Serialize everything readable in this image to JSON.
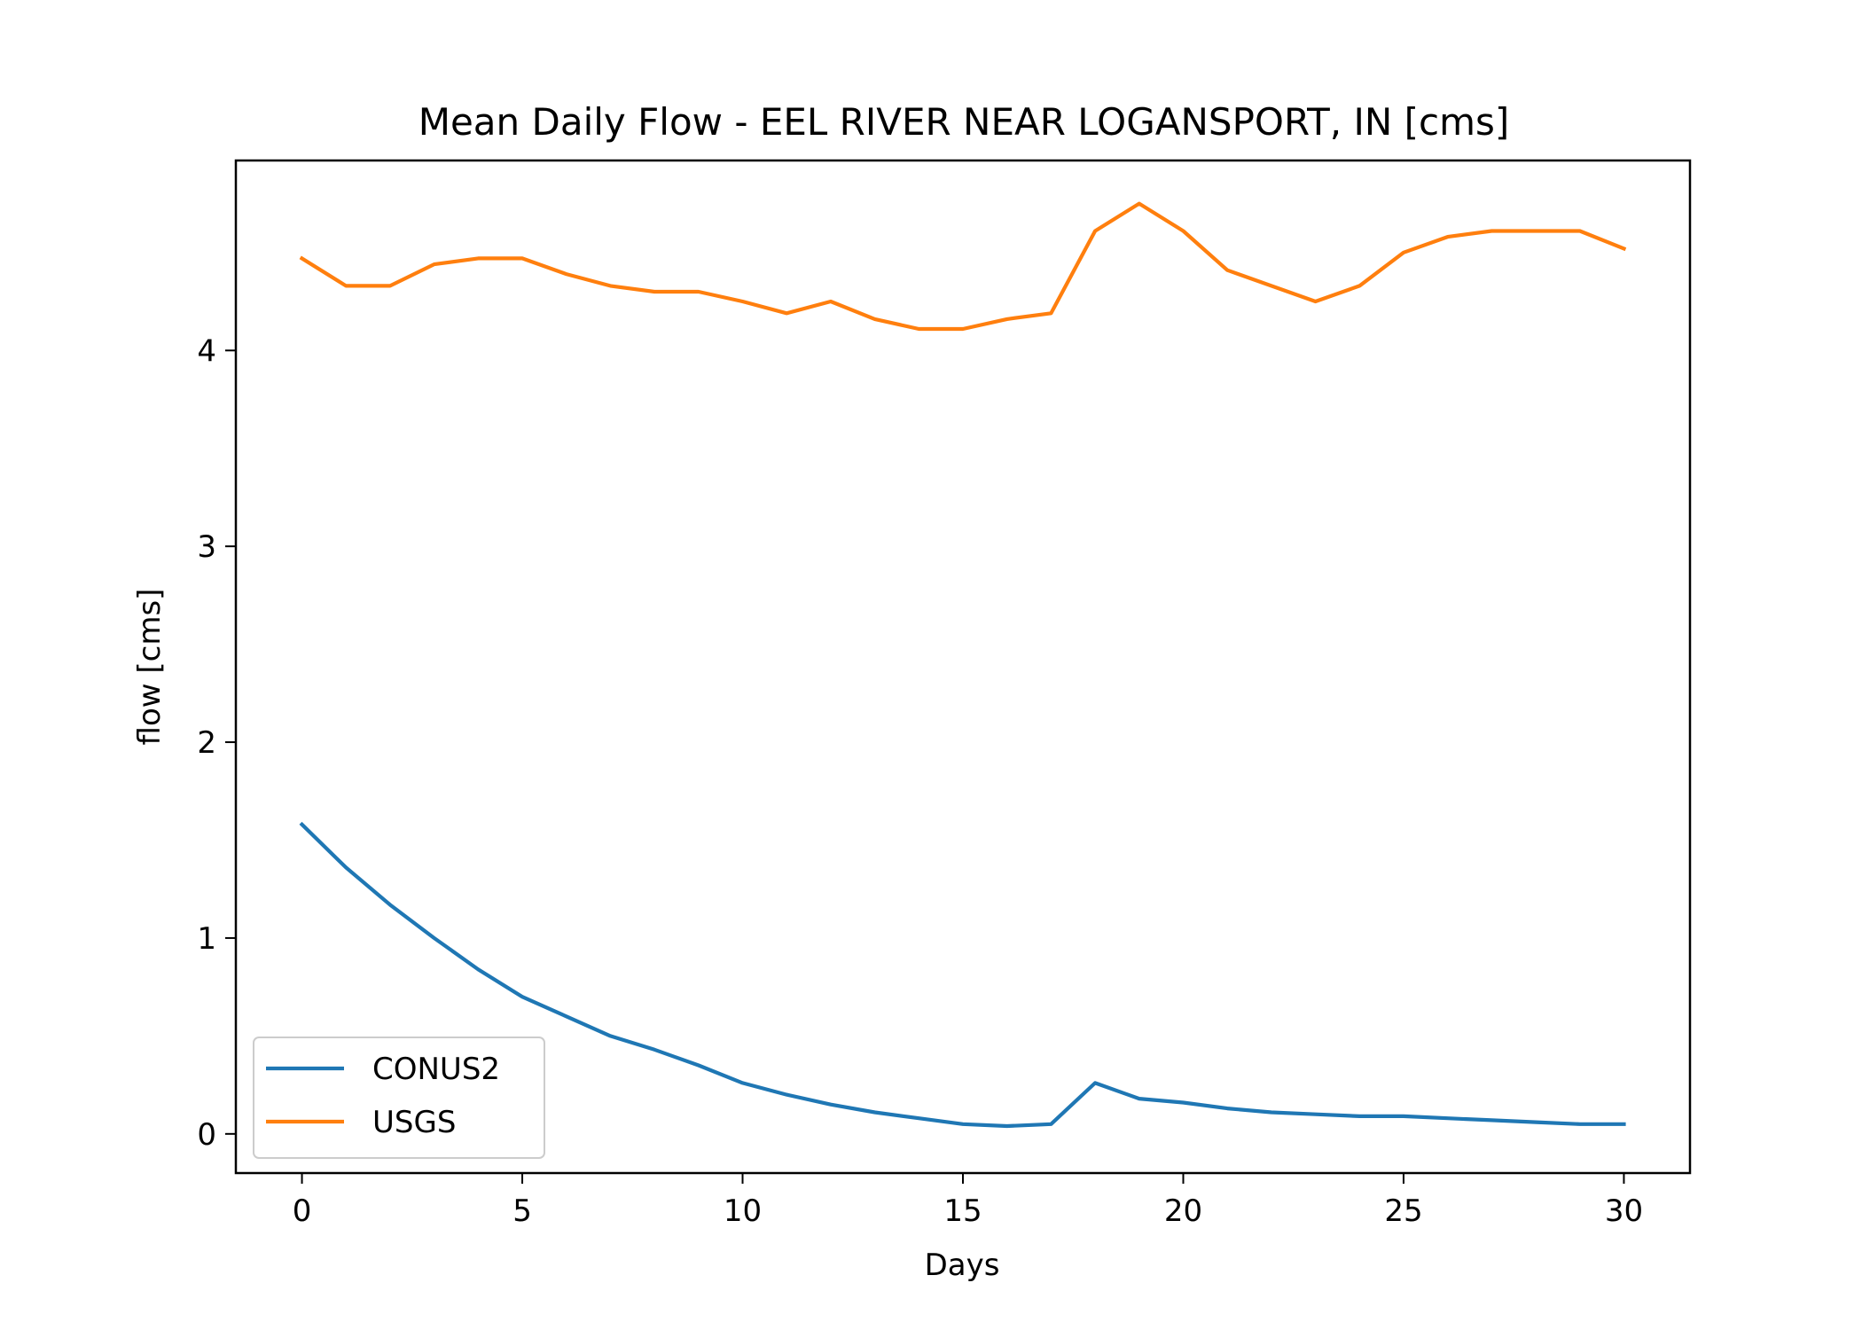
{
  "chart_data": {
    "type": "line",
    "title": "Mean Daily Flow - EEL RIVER NEAR LOGANSPORT, IN [cms]",
    "xlabel": "Days",
    "ylabel": "flow [cms]",
    "xlim": [
      -1.5,
      31.5
    ],
    "ylim": [
      -0.2,
      4.97
    ],
    "xticks": [
      0,
      5,
      10,
      15,
      20,
      25,
      30
    ],
    "yticks": [
      0,
      1,
      2,
      3,
      4
    ],
    "grid": false,
    "legend_position": "lower-left",
    "x": [
      0,
      1,
      2,
      3,
      4,
      5,
      6,
      7,
      8,
      9,
      10,
      11,
      12,
      13,
      14,
      15,
      16,
      17,
      18,
      19,
      20,
      21,
      22,
      23,
      24,
      25,
      26,
      27,
      28,
      29,
      30
    ],
    "series": [
      {
        "name": "CONUS2",
        "color": "#1f77b4",
        "values": [
          1.58,
          1.36,
          1.17,
          1.0,
          0.84,
          0.7,
          0.6,
          0.5,
          0.43,
          0.35,
          0.26,
          0.2,
          0.15,
          0.11,
          0.08,
          0.05,
          0.04,
          0.05,
          0.26,
          0.18,
          0.16,
          0.13,
          0.11,
          0.1,
          0.09,
          0.09,
          0.08,
          0.07,
          0.06,
          0.05,
          0.05
        ]
      },
      {
        "name": "USGS",
        "color": "#ff7f0e",
        "values": [
          4.47,
          4.33,
          4.33,
          4.44,
          4.47,
          4.47,
          4.39,
          4.33,
          4.3,
          4.3,
          4.25,
          4.19,
          4.25,
          4.16,
          4.11,
          4.11,
          4.16,
          4.19,
          4.61,
          4.75,
          4.61,
          4.41,
          4.33,
          4.25,
          4.33,
          4.5,
          4.58,
          4.61,
          4.61,
          4.61,
          4.52
        ]
      }
    ]
  }
}
